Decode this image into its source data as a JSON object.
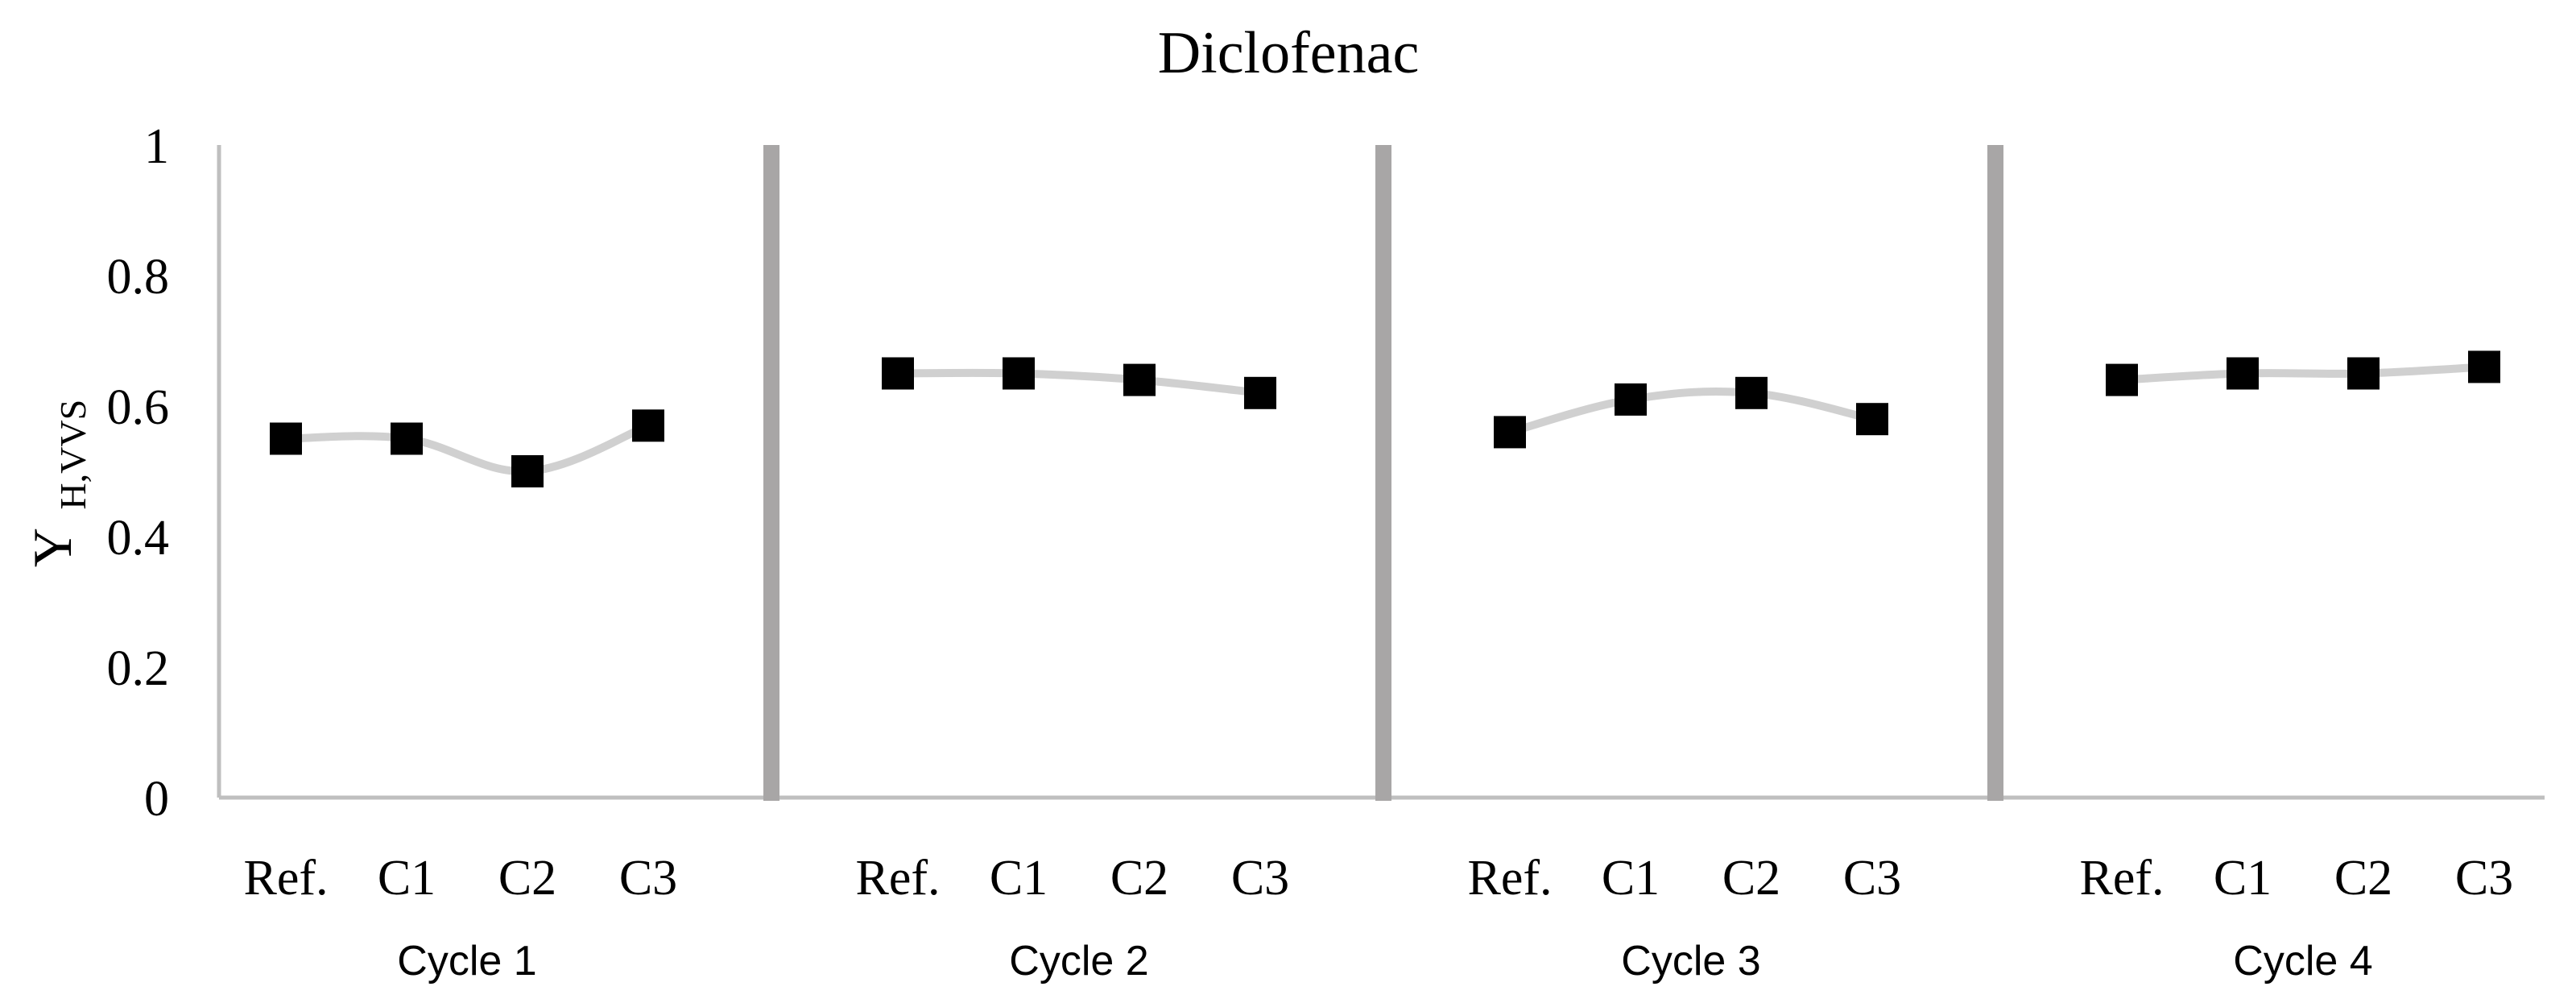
{
  "chart_data": {
    "type": "line",
    "title": "Diclofenac",
    "ylabel_main": "Y",
    "ylabel_sub": "H,VVS",
    "ylim": [
      0,
      1
    ],
    "yticks": [
      0,
      0.2,
      0.4,
      0.6,
      0.8,
      1
    ],
    "ytick_labels": [
      "0",
      "0.2",
      "0.4",
      "0.6",
      "0.8",
      "1"
    ],
    "grid": false,
    "legend": "none",
    "categories": [
      "Ref.",
      "C1",
      "C2",
      "C3"
    ],
    "groups": [
      {
        "label": "Cycle 1",
        "values": [
          0.55,
          0.55,
          0.5,
          0.57
        ]
      },
      {
        "label": "Cycle 2",
        "values": [
          0.65,
          0.65,
          0.64,
          0.62
        ]
      },
      {
        "label": "Cycle 3",
        "values": [
          0.56,
          0.61,
          0.62,
          0.58
        ]
      },
      {
        "label": "Cycle 4",
        "values": [
          0.64,
          0.65,
          0.65,
          0.66
        ]
      }
    ],
    "colors": {
      "marker": "#000000",
      "line": "#d0d0d0",
      "divider": "#a8a6a6",
      "axis": "#bfbfbf",
      "text": "#000000"
    }
  }
}
